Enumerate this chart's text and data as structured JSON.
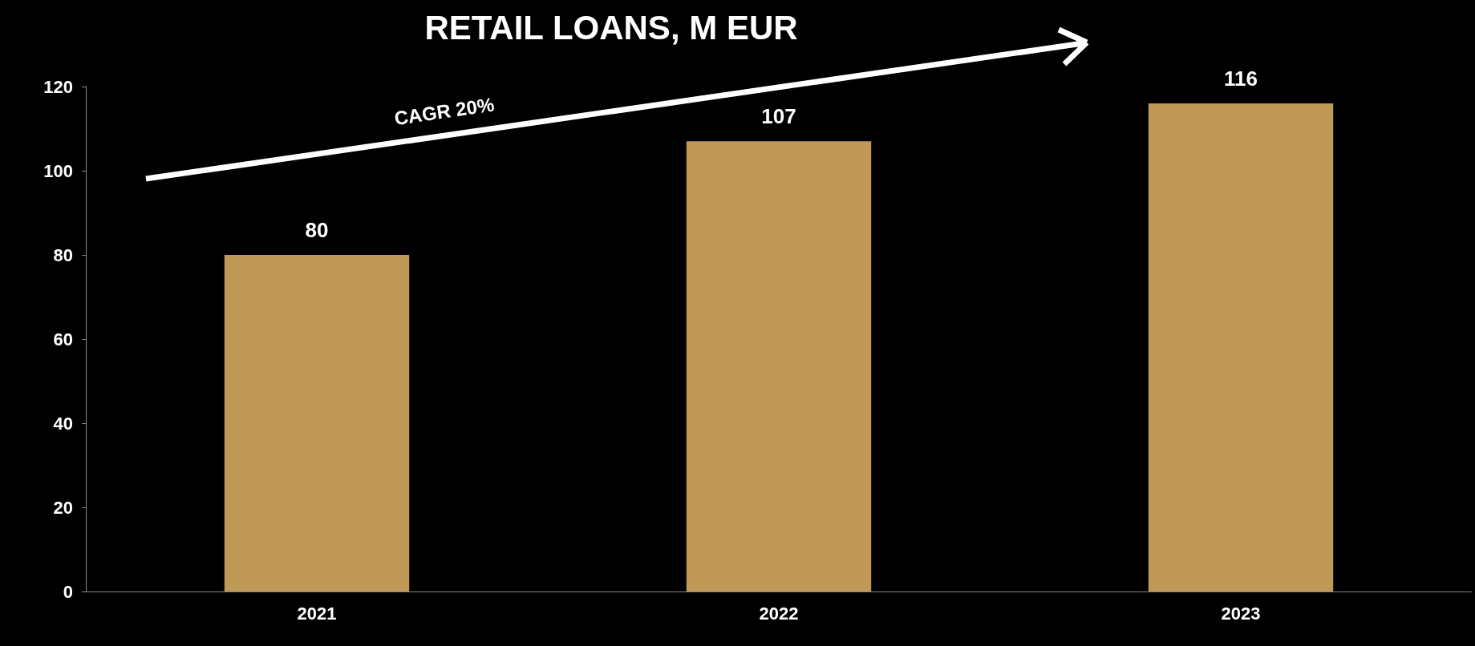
{
  "chart_data": {
    "type": "bar",
    "title": "RETAIL LOANS, M EUR",
    "categories": [
      "2021",
      "2022",
      "2023"
    ],
    "values": [
      80,
      107,
      116
    ],
    "color": "#c09858",
    "ylim": [
      0,
      120
    ],
    "yticks": [
      0,
      20,
      40,
      60,
      80,
      100,
      120
    ],
    "data_labels": true,
    "grid": false,
    "annotations": [
      "CAGR 20%"
    ]
  }
}
